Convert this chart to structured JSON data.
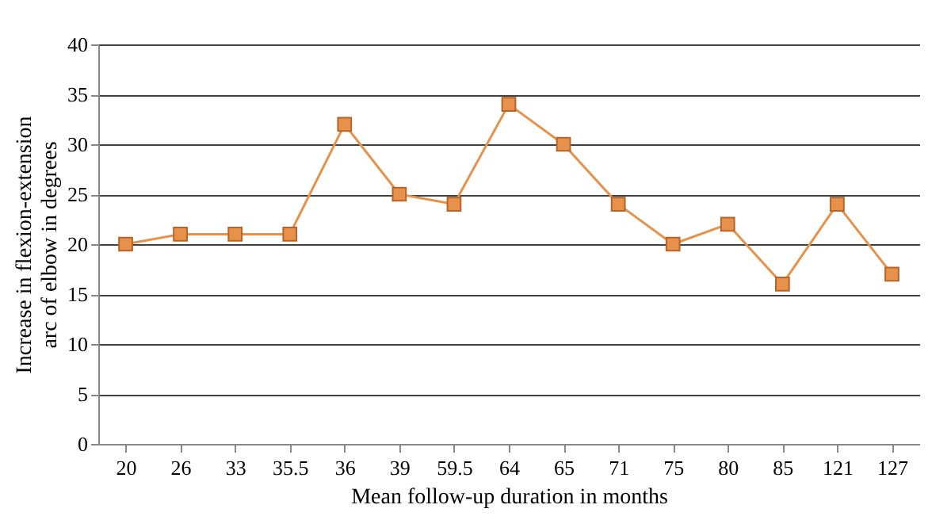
{
  "chart_data": {
    "type": "line",
    "xlabel": "Mean follow-up duration in months",
    "ylabel": "Increase in flexion-extension arc of elbow in degrees",
    "categories": [
      "20",
      "26",
      "33",
      "35.5",
      "36",
      "39",
      "59.5",
      "64",
      "65",
      "71",
      "75",
      "80",
      "85",
      "121",
      "127"
    ],
    "series": [
      {
        "color": "#e8914a",
        "values": [
          20,
          21,
          21,
          21,
          32,
          25,
          24,
          34,
          30,
          24,
          20,
          22,
          16,
          24,
          17
        ]
      }
    ],
    "ylim": [
      0,
      40
    ],
    "yticks": [
      0,
      5,
      10,
      15,
      20,
      25,
      30,
      35,
      40
    ],
    "grid": "y",
    "marker": "square",
    "line_style": "solid"
  }
}
